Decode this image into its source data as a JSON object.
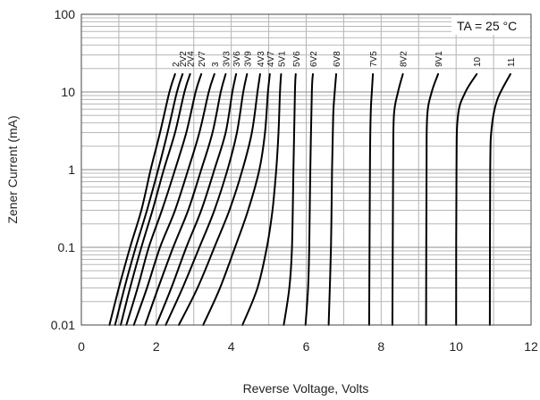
{
  "chart_data": {
    "type": "line",
    "xlabel": "Reverse Voltage, Volts",
    "ylabel": "Zener Current (mA)",
    "xlim": [
      0,
      12
    ],
    "ylim": [
      0.01,
      100
    ],
    "y_scale": "log",
    "grid": true,
    "x_ticks": [
      "0",
      "2",
      "4",
      "6",
      "8",
      "10",
      "12"
    ],
    "y_ticks": [
      "0.01",
      "0.1",
      "1",
      "10",
      "100"
    ],
    "annotation": "TA = 25 °C",
    "series": [
      {
        "name": "2",
        "points": [
          [
            0.75,
            0.01
          ],
          [
            1.0,
            0.03
          ],
          [
            1.3,
            0.1
          ],
          [
            1.6,
            0.3
          ],
          [
            1.85,
            1
          ],
          [
            2.1,
            3
          ],
          [
            2.35,
            10
          ],
          [
            2.5,
            17
          ]
        ]
      },
      {
        "name": "2V2",
        "points": [
          [
            0.9,
            0.01
          ],
          [
            1.15,
            0.03
          ],
          [
            1.45,
            0.1
          ],
          [
            1.75,
            0.3
          ],
          [
            2.05,
            1
          ],
          [
            2.3,
            3
          ],
          [
            2.55,
            10
          ],
          [
            2.7,
            17
          ]
        ]
      },
      {
        "name": "2V4",
        "points": [
          [
            1.05,
            0.01
          ],
          [
            1.3,
            0.03
          ],
          [
            1.6,
            0.1
          ],
          [
            1.9,
            0.3
          ],
          [
            2.2,
            1
          ],
          [
            2.5,
            3
          ],
          [
            2.75,
            10
          ],
          [
            2.9,
            17
          ]
        ]
      },
      {
        "name": "2V7",
        "points": [
          [
            1.2,
            0.01
          ],
          [
            1.5,
            0.03
          ],
          [
            1.8,
            0.1
          ],
          [
            2.15,
            0.3
          ],
          [
            2.5,
            1
          ],
          [
            2.8,
            3
          ],
          [
            3.05,
            10
          ],
          [
            3.2,
            17
          ]
        ]
      },
      {
        "name": "3",
        "points": [
          [
            1.4,
            0.01
          ],
          [
            1.75,
            0.03
          ],
          [
            2.1,
            0.1
          ],
          [
            2.5,
            0.3
          ],
          [
            2.85,
            1
          ],
          [
            3.15,
            3
          ],
          [
            3.4,
            10
          ],
          [
            3.55,
            17
          ]
        ]
      },
      {
        "name": "3V3",
        "points": [
          [
            1.7,
            0.01
          ],
          [
            2.05,
            0.03
          ],
          [
            2.45,
            0.1
          ],
          [
            2.85,
            0.3
          ],
          [
            3.2,
            1
          ],
          [
            3.5,
            3
          ],
          [
            3.72,
            10
          ],
          [
            3.85,
            17
          ]
        ]
      },
      {
        "name": "3V6",
        "points": [
          [
            2.0,
            0.01
          ],
          [
            2.4,
            0.03
          ],
          [
            2.8,
            0.1
          ],
          [
            3.2,
            0.3
          ],
          [
            3.55,
            1
          ],
          [
            3.85,
            3
          ],
          [
            4.03,
            10
          ],
          [
            4.13,
            17
          ]
        ]
      },
      {
        "name": "3V9",
        "points": [
          [
            2.25,
            0.01
          ],
          [
            2.7,
            0.03
          ],
          [
            3.15,
            0.1
          ],
          [
            3.55,
            0.3
          ],
          [
            3.9,
            1
          ],
          [
            4.15,
            3
          ],
          [
            4.32,
            10
          ],
          [
            4.42,
            17
          ]
        ]
      },
      {
        "name": "4V3",
        "points": [
          [
            2.6,
            0.01
          ],
          [
            3.1,
            0.03
          ],
          [
            3.55,
            0.1
          ],
          [
            3.95,
            0.3
          ],
          [
            4.3,
            1
          ],
          [
            4.55,
            3
          ],
          [
            4.7,
            10
          ],
          [
            4.77,
            17
          ]
        ]
      },
      {
        "name": "4V7",
        "points": [
          [
            3.25,
            0.01
          ],
          [
            3.7,
            0.03
          ],
          [
            4.1,
            0.1
          ],
          [
            4.45,
            0.3
          ],
          [
            4.75,
            1
          ],
          [
            4.9,
            3
          ],
          [
            4.98,
            10
          ],
          [
            5.03,
            17
          ]
        ]
      },
      {
        "name": "5V1",
        "points": [
          [
            4.3,
            0.01
          ],
          [
            4.7,
            0.03
          ],
          [
            4.95,
            0.1
          ],
          [
            5.1,
            0.3
          ],
          [
            5.2,
            1
          ],
          [
            5.26,
            3
          ],
          [
            5.3,
            10
          ],
          [
            5.33,
            17
          ]
        ]
      },
      {
        "name": "5V6",
        "points": [
          [
            5.4,
            0.01
          ],
          [
            5.55,
            0.03
          ],
          [
            5.62,
            0.1
          ],
          [
            5.66,
            1
          ],
          [
            5.7,
            10
          ],
          [
            5.72,
            17
          ]
        ]
      },
      {
        "name": "6V2",
        "points": [
          [
            5.98,
            0.01
          ],
          [
            6.05,
            0.03
          ],
          [
            6.08,
            0.1
          ],
          [
            6.11,
            1
          ],
          [
            6.15,
            10
          ],
          [
            6.18,
            17
          ]
        ]
      },
      {
        "name": "6V8",
        "points": [
          [
            6.6,
            0.01
          ],
          [
            6.66,
            0.1
          ],
          [
            6.69,
            1
          ],
          [
            6.72,
            5
          ],
          [
            6.76,
            10
          ],
          [
            6.8,
            17
          ]
        ]
      },
      {
        "name": "7V5",
        "points": [
          [
            7.68,
            0.01
          ],
          [
            7.7,
            1
          ],
          [
            7.72,
            5
          ],
          [
            7.75,
            10
          ],
          [
            7.78,
            17
          ]
        ]
      },
      {
        "name": "8V2",
        "points": [
          [
            8.3,
            0.01
          ],
          [
            8.32,
            1
          ],
          [
            8.34,
            5
          ],
          [
            8.45,
            10
          ],
          [
            8.58,
            17
          ]
        ]
      },
      {
        "name": "9V1",
        "points": [
          [
            9.2,
            0.01
          ],
          [
            9.21,
            1
          ],
          [
            9.23,
            5
          ],
          [
            9.35,
            10
          ],
          [
            9.52,
            17
          ]
        ]
      },
      {
        "name": "10",
        "points": [
          [
            10.0,
            0.01
          ],
          [
            10.01,
            1
          ],
          [
            10.05,
            5
          ],
          [
            10.25,
            10
          ],
          [
            10.55,
            17
          ]
        ]
      },
      {
        "name": "11",
        "points": [
          [
            10.9,
            0.01
          ],
          [
            10.91,
            1
          ],
          [
            10.95,
            3.5
          ],
          [
            11.1,
            8
          ],
          [
            11.45,
            17
          ]
        ]
      }
    ]
  }
}
